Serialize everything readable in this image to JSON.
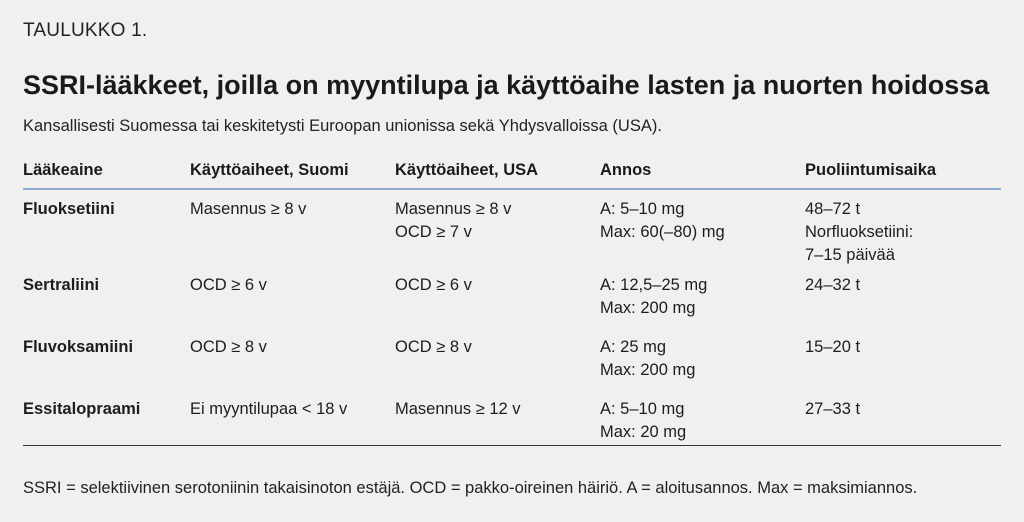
{
  "kicker": "TAULUKKO 1.",
  "title": "SSRI-lääkkeet, joilla on myyntilupa ja käyttöaihe lasten ja nuorten hoidossa",
  "subtitle": "Kansallisesti Suomessa tai keskitetysti Euroopan unionissa sekä Yhdysvalloissa (USA).",
  "table": {
    "headers": [
      "Lääkeaine",
      "Käyttöaiheet, Suomi",
      "Käyttöaiheet, USA",
      "Annos",
      "Puoliintumisaika"
    ],
    "rows": [
      {
        "drug": "Fluoksetiini",
        "fi": [
          "Masennus ≥ 8 v"
        ],
        "usa": [
          "Masennus ≥ 8 v",
          "OCD ≥ 7 v"
        ],
        "dose": [
          "A: 5–10 mg",
          "Max: 60(–80) mg"
        ],
        "halflife": [
          "48–72 t",
          "Norfluoksetiini:",
          "7–15 päivää"
        ]
      },
      {
        "drug": "Sertraliini",
        "fi": [
          "OCD ≥ 6 v"
        ],
        "usa": [
          "OCD ≥ 6 v"
        ],
        "dose": [
          "A: 12,5–25 mg",
          "Max: 200 mg"
        ],
        "halflife": [
          "24–32 t"
        ]
      },
      {
        "drug": "Fluvoksamiini",
        "fi": [
          "OCD ≥ 8 v"
        ],
        "usa": [
          "OCD ≥ 8 v"
        ],
        "dose": [
          "A: 25 mg",
          "Max: 200 mg"
        ],
        "halflife": [
          "15–20 t"
        ]
      },
      {
        "drug": "Essitalopraami",
        "fi": [
          "Ei myyntilupaa < 18 v"
        ],
        "usa": [
          "Masennus ≥ 12 v"
        ],
        "dose": [
          "A: 5–10 mg",
          "Max: 20 mg"
        ],
        "halflife": [
          "27–33 t"
        ]
      }
    ]
  },
  "footnote": "SSRI = selektiivinen serotoniinin takaisinoton estäjä. OCD = pakko-oireinen häiriö. A = aloitusannos. Max = maksimiannos.",
  "colors": {
    "header_rule": "#8ea9d2",
    "background": "#f1f0ef"
  }
}
